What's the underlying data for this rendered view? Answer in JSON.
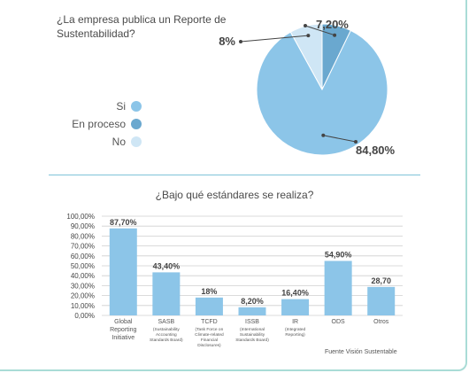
{
  "colors": {
    "si": "#8cc5e8",
    "en_proceso": "#6aa8cf",
    "no": "#cfe6f5",
    "bar": "#8cc5e8",
    "divider": "#7fc4d9",
    "border": "#a9dcd6"
  },
  "chart_data": [
    {
      "type": "pie",
      "title": "¿La empresa publica un Reporte de Sustentabilidad?",
      "slices": [
        {
          "name": "Si",
          "value": 84.8,
          "label": "84,80%",
          "color_key": "si"
        },
        {
          "name": "En proceso",
          "value": 7.2,
          "label": "7,20%",
          "color_key": "en_proceso"
        },
        {
          "name": "No",
          "value": 8,
          "label": "8%",
          "color_key": "no"
        }
      ],
      "legend_position": "left"
    },
    {
      "type": "bar",
      "title": "¿Bajo qué estándares se realiza?",
      "categories": [
        {
          "main": "Global Reporting Initiative",
          "sub": ""
        },
        {
          "main": "SASB",
          "sub": "(Sustainability Accounting Standards Board)"
        },
        {
          "main": "TCFD",
          "sub": "(Task Force on Climate-related Financial Disclosures)"
        },
        {
          "main": "ISSB",
          "sub": "(International Sustainability Standards Board)"
        },
        {
          "main": "IR",
          "sub": "(Integrated Reporting)"
        },
        {
          "main": "ODS",
          "sub": ""
        },
        {
          "main": "Otros",
          "sub": ""
        }
      ],
      "values": [
        87.7,
        43.4,
        18,
        8.2,
        16.4,
        54.9,
        28.7
      ],
      "data_labels": [
        "87,70%",
        "43,40%",
        "18%",
        "8,20%",
        "16,40%",
        "54,90%",
        "28,70"
      ],
      "y_ticks": [
        "100,00%",
        "90,00%",
        "80,00%",
        "70,00%",
        "60,00%",
        "50,00%",
        "40,00%",
        "30,00%",
        "20,00%",
        "10,00%",
        "0,00%"
      ],
      "ylim": [
        0,
        100
      ],
      "grid": true
    }
  ],
  "source": "Fuente Visión Sustentable"
}
